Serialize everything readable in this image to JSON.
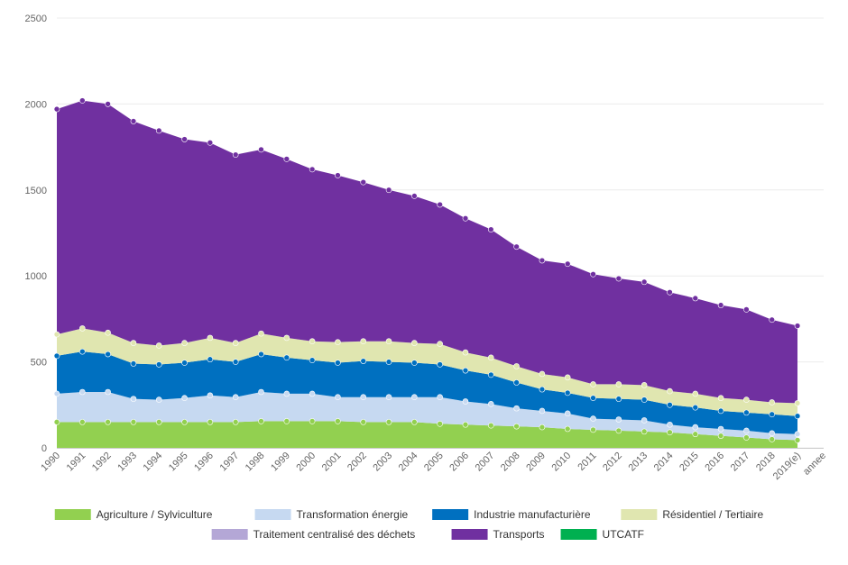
{
  "chart_data": {
    "type": "area",
    "stacked": true,
    "x": [
      "1990",
      "1991",
      "1992",
      "1993",
      "1994",
      "1995",
      "1996",
      "1997",
      "1998",
      "1999",
      "2000",
      "2001",
      "2002",
      "2003",
      "2004",
      "2005",
      "2006",
      "2007",
      "2008",
      "2009",
      "2010",
      "2011",
      "2012",
      "2013",
      "2014",
      "2015",
      "2016",
      "2017",
      "2018",
      "2019(e)"
    ],
    "xlabel": "annee",
    "ylim": [
      0,
      2500
    ],
    "yticks": [
      0,
      500,
      1000,
      1500,
      2000,
      2500
    ],
    "grid": true,
    "legend_position": "bottom",
    "series": [
      {
        "name": "Agriculture / Sylviculture",
        "color": "#92d050",
        "values": [
          150,
          150,
          150,
          150,
          150,
          150,
          150,
          150,
          155,
          155,
          155,
          155,
          150,
          150,
          150,
          140,
          135,
          130,
          125,
          120,
          110,
          105,
          100,
          95,
          90,
          80,
          70,
          60,
          50,
          45
        ]
      },
      {
        "name": "Transformation énergie",
        "color": "#c6d9f1",
        "values": [
          165,
          175,
          175,
          135,
          130,
          140,
          155,
          145,
          170,
          160,
          160,
          140,
          145,
          145,
          145,
          155,
          135,
          125,
          105,
          95,
          90,
          65,
          65,
          65,
          45,
          40,
          40,
          40,
          35,
          35
        ]
      },
      {
        "name": "Industrie manufacturière",
        "color": "#0070c0",
        "values": [
          220,
          235,
          220,
          205,
          205,
          205,
          210,
          205,
          220,
          210,
          195,
          200,
          210,
          205,
          200,
          190,
          180,
          170,
          150,
          125,
          120,
          120,
          120,
          120,
          115,
          115,
          105,
          105,
          110,
          105
        ]
      },
      {
        "name": "Résidentiel / Tertiaire",
        "color": "#e0e6b0",
        "values": [
          125,
          135,
          125,
          120,
          110,
          115,
          125,
          110,
          120,
          115,
          110,
          120,
          115,
          120,
          115,
          120,
          105,
          100,
          95,
          90,
          90,
          80,
          85,
          85,
          80,
          80,
          75,
          75,
          70,
          75
        ]
      },
      {
        "name": "Traitement centralisé des déchets",
        "color": "#b4a7d6",
        "values": [
          0,
          0,
          0,
          0,
          0,
          0,
          0,
          0,
          0,
          0,
          0,
          0,
          0,
          0,
          0,
          0,
          0,
          0,
          0,
          0,
          0,
          0,
          0,
          0,
          0,
          0,
          0,
          0,
          0,
          0
        ]
      },
      {
        "name": "Transports",
        "color": "#7030a0",
        "values": [
          1310,
          1325,
          1330,
          1290,
          1250,
          1185,
          1135,
          1095,
          1070,
          1040,
          1000,
          970,
          925,
          880,
          855,
          810,
          780,
          745,
          695,
          660,
          660,
          640,
          615,
          600,
          575,
          555,
          540,
          525,
          480,
          450
        ]
      },
      {
        "name": "UTCATF",
        "color": "#00b050",
        "values": [
          0,
          0,
          0,
          0,
          0,
          0,
          0,
          0,
          0,
          0,
          0,
          0,
          0,
          0,
          0,
          0,
          0,
          0,
          0,
          0,
          0,
          0,
          0,
          0,
          0,
          0,
          0,
          0,
          0,
          0
        ]
      }
    ]
  }
}
